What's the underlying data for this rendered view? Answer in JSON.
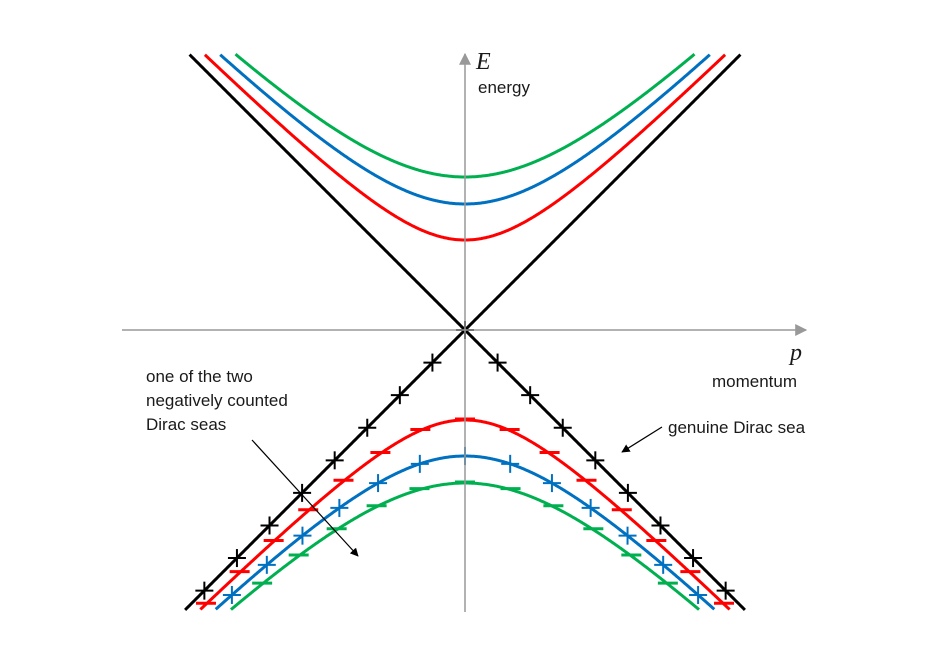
{
  "axes": {
    "y_symbol": "E",
    "y_label": "energy",
    "x_symbol": "p",
    "x_label": "momentum"
  },
  "annotations": {
    "left_line_1": "one of the two",
    "left_line_2": "negatively counted",
    "left_line_3": "Dirac seas",
    "right": "genuine Dirac sea"
  },
  "colors": {
    "axis": "#999999",
    "massless": "#000000",
    "red": "#ff0000",
    "blue": "#0070c0",
    "green": "#00b050",
    "text": "#1a1a1a"
  },
  "curves": [
    {
      "color_key": "massless",
      "mass": 0,
      "upper": true,
      "lower_marker": "plus"
    },
    {
      "color_key": "red",
      "mass": 1.0,
      "upper": true,
      "lower_marker": "minus"
    },
    {
      "color_key": "blue",
      "mass": 1.4,
      "upper": true,
      "lower_marker": "plus"
    },
    {
      "color_key": "green",
      "mass": 1.7,
      "upper": true,
      "lower_marker": "minus"
    }
  ]
}
